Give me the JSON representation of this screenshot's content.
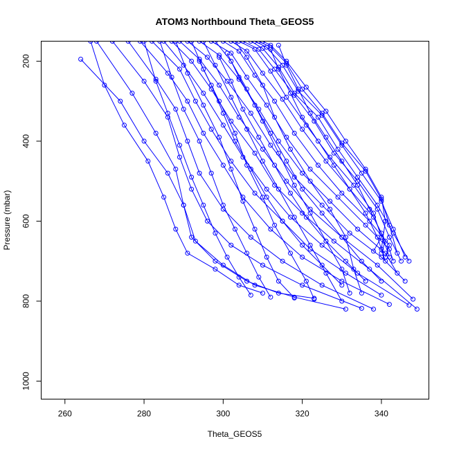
{
  "chart_data": {
    "type": "scatter",
    "title": "ATOM3 Northbound Theta_GEOS5",
    "xlabel": "Theta_GEOS5",
    "ylabel": "Pressure (mbar)",
    "xlim": [
      254,
      352
    ],
    "ylim": [
      1045,
      150
    ],
    "y_reversed": true,
    "x_ticks": [
      260,
      280,
      300,
      320,
      340
    ],
    "y_ticks": [
      200,
      400,
      600,
      800,
      1000
    ],
    "grid": false,
    "legend": "none",
    "line_color": "#0000ff",
    "marker": "open-circle",
    "series": [
      {
        "x": [
          266.5,
          270,
          275,
          281,
          285,
          288,
          291,
          298,
          304,
          310
        ],
        "y": [
          150,
          260,
          360,
          450,
          540,
          620,
          680,
          720,
          760,
          780
        ]
      },
      {
        "x": [
          264,
          274,
          280,
          286,
          290,
          292,
          298,
          306,
          314,
          323
        ],
        "y": [
          195,
          300,
          400,
          480,
          560,
          640,
          700,
          750,
          780,
          793
        ]
      },
      {
        "x": [
          268,
          277,
          283,
          288,
          290,
          293,
          300,
          308,
          318,
          331
        ],
        "y": [
          150,
          280,
          380,
          470,
          560,
          650,
          710,
          760,
          790,
          820
        ]
      },
      {
        "x": [
          272,
          280,
          286,
          289,
          292,
          296,
          302,
          310,
          320,
          335
        ],
        "y": [
          150,
          250,
          340,
          440,
          520,
          600,
          660,
          710,
          760,
          818
        ]
      },
      {
        "x": [
          276,
          283,
          288,
          291,
          294,
          300,
          307,
          315,
          325,
          338
        ],
        "y": [
          150,
          245,
          320,
          400,
          480,
          570,
          640,
          700,
          760,
          820
        ]
      },
      {
        "x": [
          279,
          286,
          291,
          295,
          300,
          305,
          312,
          320,
          330,
          342
        ],
        "y": [
          150,
          230,
          300,
          380,
          460,
          540,
          620,
          690,
          750,
          808
        ]
      },
      {
        "x": [
          282,
          289,
          293,
          297,
          302,
          308,
          315,
          322,
          331,
          340
        ],
        "y": [
          150,
          220,
          300,
          370,
          450,
          530,
          600,
          670,
          730,
          785
        ]
      },
      {
        "x": [
          285,
          290,
          295,
          300,
          305,
          311,
          317,
          325,
          334,
          347
        ],
        "y": [
          150,
          210,
          280,
          360,
          440,
          520,
          590,
          660,
          730,
          810
        ]
      },
      {
        "x": [
          287,
          292,
          297,
          302,
          308,
          313,
          320,
          328,
          337,
          349
        ],
        "y": [
          150,
          200,
          270,
          350,
          430,
          510,
          580,
          650,
          720,
          820
        ]
      },
      {
        "x": [
          289,
          294,
          299,
          304,
          310,
          316,
          322,
          330,
          339,
          348
        ],
        "y": [
          150,
          195,
          260,
          340,
          420,
          500,
          570,
          640,
          710,
          795
        ]
      },
      {
        "x": [
          291,
          296,
          301,
          307,
          312,
          318,
          325,
          332,
          340,
          346
        ],
        "y": [
          150,
          190,
          250,
          330,
          410,
          490,
          560,
          630,
          690,
          750
        ]
      },
      {
        "x": [
          294,
          299,
          304,
          309,
          314,
          320,
          327,
          334,
          341,
          344
        ],
        "y": [
          150,
          185,
          245,
          320,
          400,
          480,
          550,
          620,
          680,
          730
        ]
      },
      {
        "x": [
          297,
          302,
          306,
          311,
          316,
          322,
          329,
          336,
          342,
          343
        ],
        "y": [
          150,
          180,
          240,
          310,
          390,
          470,
          540,
          610,
          670,
          700
        ]
      },
      {
        "x": [
          300,
          304,
          308,
          313,
          318,
          324,
          330,
          337,
          342,
          341
        ],
        "y": [
          150,
          175,
          235,
          300,
          380,
          460,
          530,
          600,
          660,
          690
        ]
      },
      {
        "x": [
          302,
          306,
          310,
          315,
          320,
          326,
          332,
          338,
          341,
          340
        ],
        "y": [
          150,
          175,
          230,
          295,
          370,
          450,
          520,
          590,
          650,
          680
        ]
      },
      {
        "x": [
          304,
          308,
          312,
          316,
          321,
          327,
          333,
          338,
          340,
          338
        ],
        "y": [
          150,
          170,
          225,
          290,
          360,
          440,
          510,
          580,
          640,
          675
        ]
      },
      {
        "x": [
          305,
          309,
          313,
          318,
          323,
          328,
          334,
          339,
          342,
          345
        ],
        "y": [
          150,
          170,
          220,
          285,
          350,
          430,
          500,
          570,
          640,
          700
        ]
      },
      {
        "x": [
          307,
          310,
          314,
          318,
          324,
          329,
          334,
          339,
          343,
          347
        ],
        "y": [
          150,
          168,
          215,
          280,
          340,
          420,
          490,
          560,
          630,
          700
        ]
      },
      {
        "x": [
          308,
          311,
          315,
          319,
          325,
          330,
          335,
          340,
          343,
          346
        ],
        "y": [
          150,
          165,
          210,
          275,
          335,
          410,
          480,
          550,
          620,
          690
        ]
      },
      {
        "x": [
          309,
          312,
          316,
          320,
          325,
          330,
          336,
          340,
          342,
          344
        ],
        "y": [
          150,
          165,
          205,
          270,
          330,
          405,
          475,
          545,
          610,
          680
        ]
      },
      {
        "x": [
          310,
          312,
          316,
          321,
          326,
          331,
          336,
          340,
          341,
          340
        ],
        "y": [
          150,
          160,
          200,
          265,
          325,
          400,
          470,
          540,
          600,
          670
        ]
      },
      {
        "x": [
          303,
          306,
          310,
          313,
          317,
          322,
          327,
          331,
          333,
          335
        ],
        "y": [
          150,
          190,
          260,
          340,
          420,
          500,
          570,
          640,
          720,
          780
        ]
      },
      {
        "x": [
          298,
          302,
          306,
          310,
          314,
          318,
          322,
          326,
          330,
          332
        ],
        "y": [
          150,
          200,
          270,
          350,
          430,
          510,
          580,
          650,
          720,
          780
        ]
      },
      {
        "x": [
          295,
          298,
          302,
          306,
          310,
          314,
          318,
          322,
          326,
          330
        ],
        "y": [
          150,
          210,
          290,
          370,
          450,
          520,
          590,
          660,
          730,
          800
        ]
      },
      {
        "x": [
          292,
          295,
          299,
          303,
          306,
          310,
          313,
          317,
          321,
          323
        ],
        "y": [
          150,
          220,
          300,
          380,
          460,
          540,
          610,
          680,
          750,
          795
        ]
      },
      {
        "x": [
          288,
          291,
          295,
          299,
          302,
          305,
          308,
          311,
          314,
          318
        ],
        "y": [
          150,
          230,
          310,
          390,
          470,
          550,
          620,
          690,
          750,
          792
        ]
      },
      {
        "x": [
          284,
          287,
          290,
          294,
          297,
          300,
          303,
          306,
          309,
          312
        ],
        "y": [
          150,
          240,
          320,
          400,
          480,
          560,
          620,
          680,
          740,
          790
        ]
      },
      {
        "x": [
          280,
          283,
          286,
          289,
          292,
          295,
          298,
          301,
          304,
          307
        ],
        "y": [
          150,
          250,
          330,
          410,
          490,
          560,
          630,
          690,
          740,
          785
        ]
      },
      {
        "x": [
          294,
          297,
          300,
          303,
          307,
          311,
          315,
          320,
          325,
          330
        ],
        "y": [
          200,
          260,
          330,
          400,
          470,
          540,
          600,
          660,
          710,
          760
        ]
      },
      {
        "x": [
          299,
          302,
          305,
          309,
          313,
          317,
          321,
          326,
          331,
          336
        ],
        "y": [
          190,
          250,
          320,
          390,
          460,
          530,
          590,
          650,
          700,
          750
        ]
      },
      {
        "x": [
          301,
          304,
          308,
          312,
          316,
          320,
          325,
          330,
          335,
          340
        ],
        "y": [
          180,
          240,
          310,
          380,
          450,
          520,
          580,
          640,
          700,
          750
        ]
      },
      {
        "x": [
          312,
          314,
          317,
          320,
          324,
          328,
          332,
          336,
          339,
          341
        ],
        "y": [
          170,
          220,
          280,
          340,
          400,
          460,
          520,
          580,
          640,
          700
        ]
      },
      {
        "x": [
          314,
          316,
          319,
          322,
          326,
          330,
          334,
          337,
          340,
          342
        ],
        "y": [
          160,
          210,
          270,
          330,
          390,
          450,
          510,
          570,
          630,
          690
        ]
      }
    ]
  }
}
